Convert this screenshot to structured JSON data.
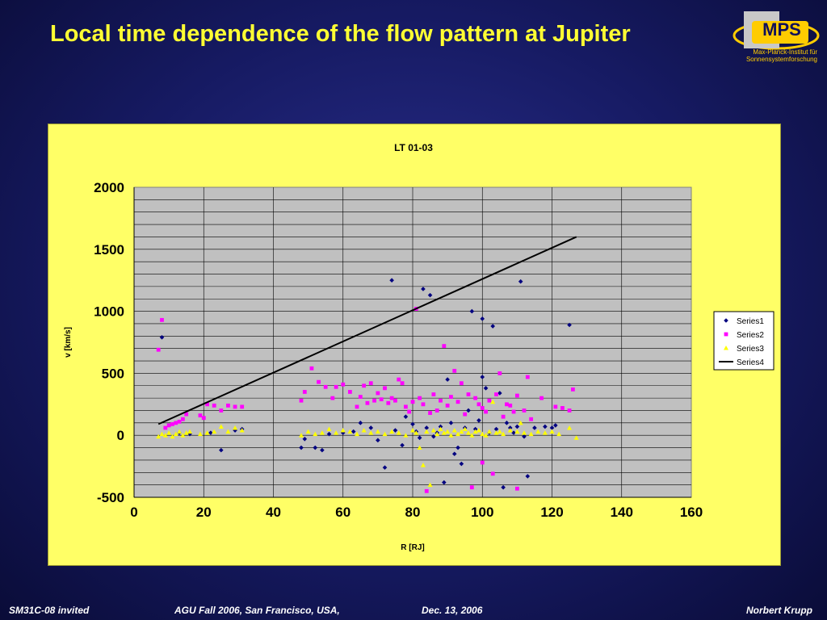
{
  "slide": {
    "title": "Local time dependence of the flow pattern at Jupiter"
  },
  "logo": {
    "name": "MPS",
    "line1": "Max-Planck-Institut für",
    "line2": "Sonnensystemforschung"
  },
  "footer": {
    "session": "SM31C-08 invited",
    "meeting": "AGU Fall 2006, San Francisco, USA,",
    "date": "Dec. 13, 2006",
    "author": "Norbert Krupp"
  },
  "colors": {
    "series1": "#000080",
    "series2": "#ff00ff",
    "series3": "#ffff00",
    "series4": "#000000",
    "plot_bg": "#c0c0c0",
    "panel_bg": "#ffff66"
  },
  "chart_data": {
    "type": "scatter",
    "title": "LT 01-03",
    "xlabel": "R [RJ]",
    "ylabel": "v [km/s]",
    "xlim": [
      0,
      160
    ],
    "ylim": [
      -500,
      2000
    ],
    "xticks": [
      "0",
      "20",
      "40",
      "60",
      "80",
      "100",
      "120",
      "140",
      "160"
    ],
    "yticks": [
      "-500",
      "0",
      "500",
      "1000",
      "1500",
      "2000"
    ],
    "grid": "on",
    "legend": "right",
    "series": [
      {
        "name": "Series1",
        "marker": "diamond",
        "points": [
          [
            8,
            790
          ],
          [
            13,
            20
          ],
          [
            16,
            10
          ],
          [
            22,
            20
          ],
          [
            25,
            -120
          ],
          [
            29,
            40
          ],
          [
            31,
            50
          ],
          [
            48,
            -100
          ],
          [
            49,
            -30
          ],
          [
            52,
            -100
          ],
          [
            54,
            -120
          ],
          [
            56,
            10
          ],
          [
            60,
            20
          ],
          [
            63,
            30
          ],
          [
            65,
            100
          ],
          [
            68,
            60
          ],
          [
            70,
            -40
          ],
          [
            72,
            -260
          ],
          [
            74,
            1250
          ],
          [
            75,
            40
          ],
          [
            77,
            -80
          ],
          [
            78,
            150
          ],
          [
            80,
            90
          ],
          [
            81,
            30
          ],
          [
            82,
            -20
          ],
          [
            83,
            1180
          ],
          [
            84,
            60
          ],
          [
            85,
            1130
          ],
          [
            86,
            -10
          ],
          [
            87,
            20
          ],
          [
            88,
            70
          ],
          [
            89,
            -380
          ],
          [
            90,
            450
          ],
          [
            91,
            100
          ],
          [
            92,
            -150
          ],
          [
            93,
            -100
          ],
          [
            94,
            -230
          ],
          [
            95,
            60
          ],
          [
            96,
            200
          ],
          [
            97,
            1000
          ],
          [
            98,
            50
          ],
          [
            99,
            120
          ],
          [
            100,
            940
          ],
          [
            100,
            470
          ],
          [
            101,
            380
          ],
          [
            102,
            20
          ],
          [
            103,
            880
          ],
          [
            104,
            50
          ],
          [
            105,
            340
          ],
          [
            106,
            -420
          ],
          [
            107,
            100
          ],
          [
            108,
            60
          ],
          [
            109,
            20
          ],
          [
            110,
            70
          ],
          [
            111,
            1240
          ],
          [
            112,
            -10
          ],
          [
            113,
            -330
          ],
          [
            115,
            60
          ],
          [
            118,
            70
          ],
          [
            120,
            60
          ],
          [
            121,
            80
          ],
          [
            125,
            890
          ]
        ]
      },
      {
        "name": "Series2",
        "marker": "square",
        "points": [
          [
            7,
            690
          ],
          [
            8,
            930
          ],
          [
            9,
            60
          ],
          [
            10,
            80
          ],
          [
            11,
            90
          ],
          [
            12,
            100
          ],
          [
            13,
            110
          ],
          [
            14,
            130
          ],
          [
            15,
            170
          ],
          [
            19,
            160
          ],
          [
            20,
            140
          ],
          [
            21,
            250
          ],
          [
            23,
            240
          ],
          [
            25,
            200
          ],
          [
            27,
            240
          ],
          [
            29,
            230
          ],
          [
            31,
            230
          ],
          [
            48,
            280
          ],
          [
            49,
            350
          ],
          [
            51,
            540
          ],
          [
            53,
            430
          ],
          [
            55,
            390
          ],
          [
            57,
            300
          ],
          [
            58,
            390
          ],
          [
            60,
            410
          ],
          [
            62,
            350
          ],
          [
            64,
            230
          ],
          [
            65,
            310
          ],
          [
            66,
            400
          ],
          [
            67,
            260
          ],
          [
            68,
            420
          ],
          [
            69,
            280
          ],
          [
            70,
            340
          ],
          [
            71,
            290
          ],
          [
            72,
            380
          ],
          [
            73,
            260
          ],
          [
            74,
            300
          ],
          [
            75,
            280
          ],
          [
            76,
            450
          ],
          [
            77,
            420
          ],
          [
            78,
            230
          ],
          [
            79,
            190
          ],
          [
            80,
            270
          ],
          [
            81,
            1020
          ],
          [
            82,
            300
          ],
          [
            83,
            250
          ],
          [
            84,
            -450
          ],
          [
            85,
            180
          ],
          [
            86,
            330
          ],
          [
            87,
            200
          ],
          [
            88,
            280
          ],
          [
            89,
            720
          ],
          [
            90,
            240
          ],
          [
            91,
            310
          ],
          [
            92,
            520
          ],
          [
            93,
            270
          ],
          [
            94,
            420
          ],
          [
            95,
            170
          ],
          [
            96,
            330
          ],
          [
            97,
            -420
          ],
          [
            98,
            300
          ],
          [
            99,
            250
          ],
          [
            100,
            220
          ],
          [
            100,
            -220
          ],
          [
            101,
            190
          ],
          [
            102,
            280
          ],
          [
            103,
            -310
          ],
          [
            104,
            330
          ],
          [
            105,
            500
          ],
          [
            106,
            150
          ],
          [
            107,
            250
          ],
          [
            108,
            240
          ],
          [
            109,
            190
          ],
          [
            110,
            320
          ],
          [
            110,
            -430
          ],
          [
            112,
            200
          ],
          [
            113,
            470
          ],
          [
            114,
            130
          ],
          [
            117,
            300
          ],
          [
            121,
            230
          ],
          [
            123,
            220
          ],
          [
            125,
            200
          ],
          [
            126,
            370
          ]
        ]
      },
      {
        "name": "Series3",
        "marker": "triangle",
        "points": [
          [
            7,
            -10
          ],
          [
            8,
            10
          ],
          [
            9,
            0
          ],
          [
            10,
            20
          ],
          [
            11,
            -10
          ],
          [
            12,
            10
          ],
          [
            13,
            30
          ],
          [
            14,
            0
          ],
          [
            15,
            20
          ],
          [
            16,
            30
          ],
          [
            19,
            10
          ],
          [
            21,
            20
          ],
          [
            23,
            30
          ],
          [
            25,
            70
          ],
          [
            27,
            30
          ],
          [
            29,
            60
          ],
          [
            31,
            40
          ],
          [
            48,
            0
          ],
          [
            50,
            30
          ],
          [
            52,
            10
          ],
          [
            54,
            20
          ],
          [
            56,
            50
          ],
          [
            58,
            20
          ],
          [
            60,
            40
          ],
          [
            62,
            30
          ],
          [
            64,
            10
          ],
          [
            66,
            40
          ],
          [
            68,
            20
          ],
          [
            70,
            30
          ],
          [
            72,
            10
          ],
          [
            74,
            30
          ],
          [
            76,
            20
          ],
          [
            78,
            0
          ],
          [
            80,
            40
          ],
          [
            81,
            20
          ],
          [
            82,
            -100
          ],
          [
            83,
            -240
          ],
          [
            84,
            30
          ],
          [
            85,
            -400
          ],
          [
            86,
            40
          ],
          [
            87,
            10
          ],
          [
            88,
            50
          ],
          [
            89,
            20
          ],
          [
            90,
            30
          ],
          [
            91,
            0
          ],
          [
            92,
            40
          ],
          [
            93,
            10
          ],
          [
            94,
            30
          ],
          [
            95,
            50
          ],
          [
            96,
            20
          ],
          [
            97,
            0
          ],
          [
            98,
            30
          ],
          [
            99,
            40
          ],
          [
            100,
            10
          ],
          [
            101,
            0
          ],
          [
            102,
            30
          ],
          [
            103,
            270
          ],
          [
            104,
            20
          ],
          [
            105,
            30
          ],
          [
            106,
            10
          ],
          [
            108,
            40
          ],
          [
            110,
            30
          ],
          [
            111,
            100
          ],
          [
            112,
            20
          ],
          [
            114,
            10
          ],
          [
            116,
            30
          ],
          [
            118,
            20
          ],
          [
            120,
            30
          ],
          [
            122,
            10
          ],
          [
            125,
            60
          ],
          [
            127,
            -20
          ]
        ]
      },
      {
        "name": "Series4",
        "marker": "line",
        "points": [
          [
            7,
            90
          ],
          [
            127,
            1600
          ]
        ]
      }
    ]
  }
}
